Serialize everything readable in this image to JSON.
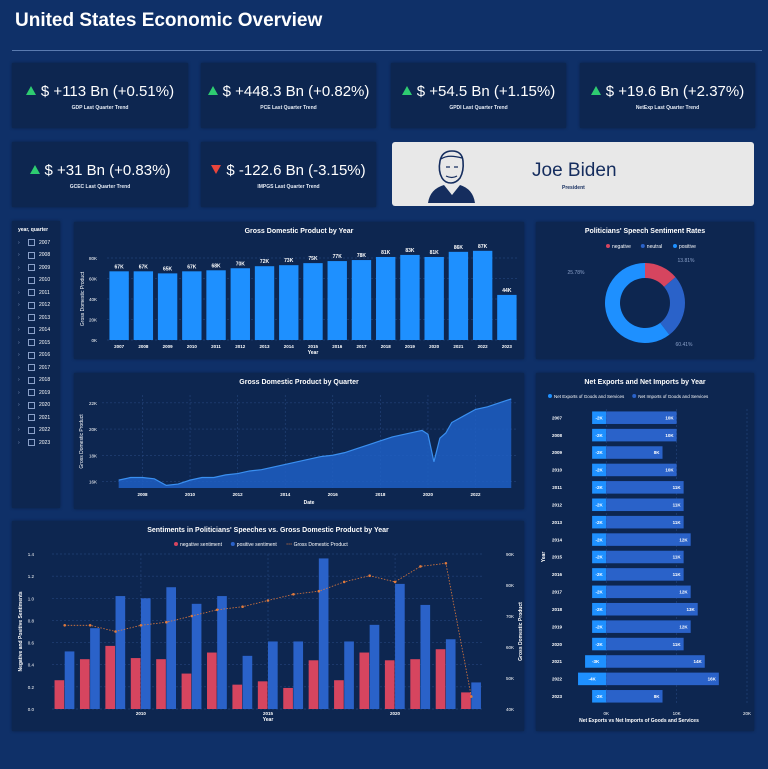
{
  "header": {
    "title": "United States Economic Overview"
  },
  "kpis": [
    {
      "value": "$ +113 Bn (+0.51%)",
      "label": "GDP Last Quarter Trend",
      "trend": "up"
    },
    {
      "value": "$ +448.3 Bn (+0.82%)",
      "label": "PCE Last Quarter Trend",
      "trend": "up"
    },
    {
      "value": "$ +54.5 Bn (+1.15%)",
      "label": "GPDI Last Quarter Trend",
      "trend": "up"
    },
    {
      "value": "$ +19.6 Bn (+2.37%)",
      "label": "NetExp Last Quarter Trend",
      "trend": "up"
    },
    {
      "value": "$ +31 Bn (+0.83%)",
      "label": "GCEC Last Quarter Trend",
      "trend": "up"
    },
    {
      "value": "$ -122.6 Bn (-3.15%)",
      "label": "IMPGS Last Quarter Trend",
      "trend": "down"
    }
  ],
  "president": {
    "name": "Joe Biden",
    "role": "President"
  },
  "slicer": {
    "title": "year, quarter",
    "years": [
      "2007",
      "2008",
      "2009",
      "2010",
      "2011",
      "2012",
      "2013",
      "2014",
      "2015",
      "2016",
      "2017",
      "2018",
      "2019",
      "2020",
      "2021",
      "2022",
      "2023"
    ]
  },
  "colors": {
    "positive": "#1e90ff",
    "negative": "#d6455f",
    "neutral": "#2a62c9",
    "line": "#e07a3c"
  },
  "chart_data": [
    {
      "type": "bar",
      "title": "Gross Domestic Product by Year",
      "xlabel": "Year",
      "ylabel": "Gross Domestic Product",
      "categories": [
        "2007",
        "2008",
        "2009",
        "2010",
        "2011",
        "2012",
        "2013",
        "2014",
        "2015",
        "2016",
        "2017",
        "2018",
        "2019",
        "2020",
        "2021",
        "2022",
        "2023"
      ],
      "values": [
        67,
        67,
        65,
        67,
        68,
        70,
        72,
        73,
        75,
        77,
        78,
        81,
        83,
        81,
        86,
        87,
        44
      ],
      "data_labels": [
        "67K",
        "67K",
        "65K",
        "67K",
        "68K",
        "70K",
        "72K",
        "73K",
        "75K",
        "77K",
        "78K",
        "81K",
        "83K",
        "81K",
        "86K",
        "87K",
        "44K"
      ],
      "yticks": [
        "0K",
        "20K",
        "40K",
        "60K",
        "80K"
      ],
      "ylim": [
        0,
        80
      ]
    },
    {
      "type": "pie",
      "title": "Politicians' Speech Sentiment Rates",
      "categories": [
        "negative",
        "neutral",
        "positive"
      ],
      "values": [
        13.81,
        25.78,
        60.41
      ],
      "data_labels": [
        "13.81%",
        "25.78%",
        "60.41%"
      ]
    },
    {
      "type": "area",
      "title": "Gross Domestic Product by Quarter",
      "xlabel": "Date",
      "ylabel": "Gross Domestic Product",
      "xticks": [
        "2008",
        "2010",
        "2012",
        "2014",
        "2016",
        "2018",
        "2020",
        "2022"
      ],
      "yticks": [
        "16K",
        "18K",
        "20K",
        "22K"
      ],
      "ylim": [
        15.5,
        22.6
      ],
      "x": [
        2007.0,
        2007.5,
        2008.0,
        2008.5,
        2009.0,
        2009.5,
        2010.0,
        2010.5,
        2011.0,
        2011.5,
        2012.0,
        2012.5,
        2013.0,
        2013.5,
        2014.0,
        2014.5,
        2015.0,
        2015.5,
        2016.0,
        2016.5,
        2017.0,
        2017.5,
        2018.0,
        2018.5,
        2019.0,
        2019.5,
        2019.75,
        2020.0,
        2020.25,
        2020.5,
        2020.75,
        2021.0,
        2021.5,
        2022.0,
        2022.5,
        2023.0,
        2023.5
      ],
      "y": [
        16.1,
        16.3,
        16.3,
        16.2,
        15.7,
        15.8,
        16.1,
        16.3,
        16.3,
        16.5,
        16.6,
        16.8,
        16.9,
        17.1,
        17.3,
        17.5,
        17.7,
        17.9,
        18.0,
        18.2,
        18.5,
        18.8,
        19.1,
        19.4,
        19.6,
        19.8,
        19.9,
        19.6,
        17.5,
        19.3,
        19.7,
        20.5,
        21.0,
        21.5,
        21.7,
        22.0,
        22.3
      ]
    },
    {
      "type": "bar",
      "title": "Sentiments in Politicians' Speeches vs. Gross Domestic Product by Year",
      "xlabel": "Year",
      "ylabel": "Negative and Positive Sentiments",
      "y2label": "Gross Domestic Product",
      "xticks": [
        "2010",
        "2015",
        "2020"
      ],
      "yticks": [
        "0.0",
        "0.2",
        "0.4",
        "0.6",
        "0.8",
        "1.0",
        "1.2",
        "1.4"
      ],
      "y2ticks": [
        "40K",
        "50K",
        "60K",
        "70K",
        "80K",
        "90K"
      ],
      "series": [
        {
          "name": "negative sentiment",
          "values": [
            0.26,
            0.45,
            0.57,
            0.46,
            0.45,
            0.32,
            0.51,
            0.22,
            0.25,
            0.19,
            0.44,
            0.26,
            0.51,
            0.44,
            0.45,
            0.54,
            0.15
          ]
        },
        {
          "name": "positive sentiment",
          "values": [
            0.52,
            0.73,
            1.02,
            1.0,
            1.1,
            0.95,
            1.02,
            0.48,
            0.61,
            0.61,
            1.36,
            0.61,
            0.76,
            1.13,
            0.94,
            0.63,
            0.24
          ]
        },
        {
          "name": "Gross Domestic Product",
          "values": [
            67,
            67,
            65,
            67,
            68,
            70,
            72,
            73,
            75,
            77,
            78,
            81,
            83,
            81,
            86,
            87,
            44
          ]
        }
      ]
    },
    {
      "type": "bar",
      "title": "Net Exports and Net Imports by Year",
      "xlabel": "Net Exports vs Net Imports of Goods and Services",
      "ylabel": "Year",
      "categories": [
        "2007",
        "2008",
        "2009",
        "2010",
        "2011",
        "2012",
        "2013",
        "2014",
        "2015",
        "2016",
        "2017",
        "2018",
        "2019",
        "2020",
        "2021",
        "2022",
        "2023"
      ],
      "series": [
        {
          "name": "Net Exports of Goods and Services",
          "values": [
            -2,
            -2,
            -2,
            -2,
            -2,
            -2,
            -2,
            -2,
            -2,
            -2,
            -2,
            -2,
            -2,
            -2,
            -3,
            -4,
            -2
          ],
          "labels": [
            "-2K",
            "-2K",
            "-2K",
            "-2K",
            "-2K",
            "-2K",
            "-2K",
            "-2K",
            "-2K",
            "-2K",
            "-2K",
            "-2K",
            "-2K",
            "-2K",
            "-3K",
            "-4K",
            "-2K"
          ]
        },
        {
          "name": "Net Imports of Goods and Services",
          "values": [
            10,
            10,
            8,
            10,
            11,
            11,
            11,
            12,
            11,
            11,
            12,
            13,
            12,
            11,
            14,
            16,
            8
          ],
          "labels": [
            "10K",
            "10K",
            "8K",
            "10K",
            "11K",
            "11K",
            "11K",
            "12K",
            "11K",
            "11K",
            "12K",
            "13K",
            "12K",
            "11K",
            "14K",
            "16K",
            "8K"
          ]
        }
      ],
      "xticks": [
        "0K",
        "10K",
        "20K"
      ],
      "xlim": [
        -5,
        20
      ]
    }
  ]
}
